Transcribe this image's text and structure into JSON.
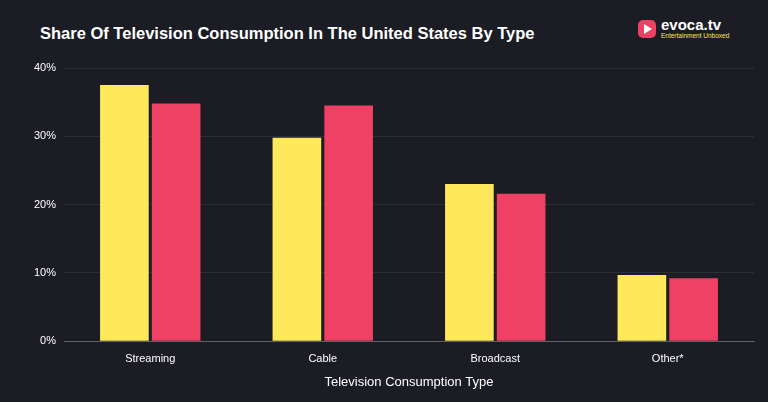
{
  "chart_data": {
    "type": "bar",
    "title": "Share Of Television Consumption In The United States By Type",
    "logo": {
      "name": "evoca.tv",
      "tagline": "Entertainment Unboxed"
    },
    "x_label": "Television Consumption Type",
    "categories": [
      "Streaming",
      "Cable",
      "Broadcast",
      "Other*"
    ],
    "series": [
      {
        "color": "#fde95a",
        "values": [
          37.5,
          29.8,
          23.0,
          9.7
        ]
      },
      {
        "color": "#ef4164",
        "values": [
          34.8,
          34.5,
          21.6,
          9.2
        ]
      }
    ],
    "ylim": [
      0,
      40
    ],
    "yticks": [
      {
        "value": 0,
        "label": "0%"
      },
      {
        "value": 10,
        "label": "10%"
      },
      {
        "value": 20,
        "label": "20%"
      },
      {
        "value": 30,
        "label": "30%"
      },
      {
        "value": 40,
        "label": "40%"
      }
    ],
    "grid": true
  }
}
